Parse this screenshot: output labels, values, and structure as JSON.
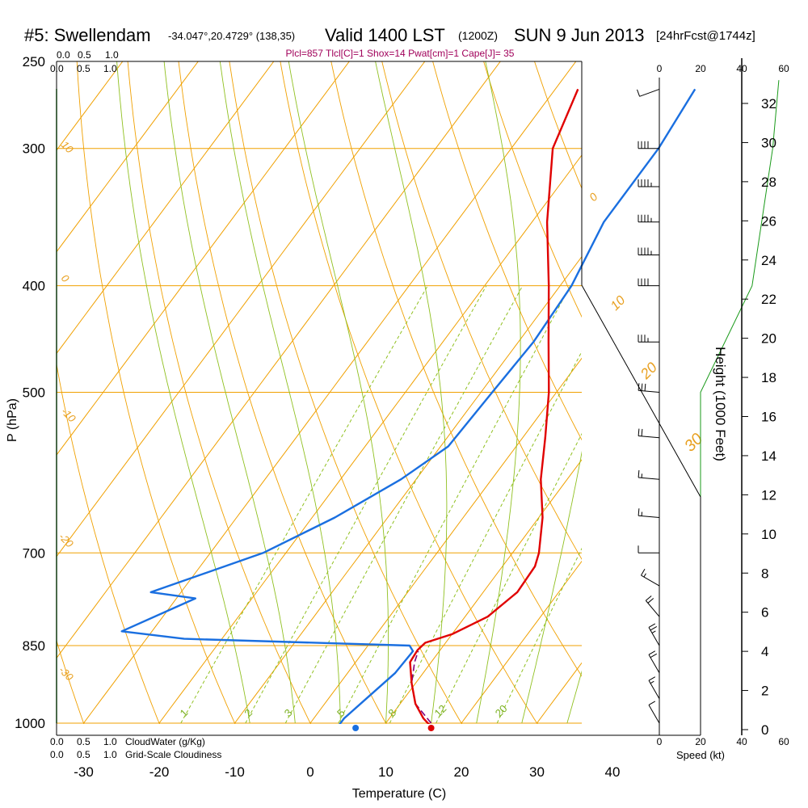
{
  "header": {
    "station": "#5: Swellendam",
    "coords": "-34.047°,20.4729° (138,35)",
    "valid": "Valid 1400 LST",
    "zulu": "(1200Z)",
    "date": "SUN 9 Jun 2013",
    "forecast": "[24hrFcst@1744z]"
  },
  "params_line": "Plcl=857 Tlcl[C]=1 Shox=14 Pwat[cm]=1 Cape[J]= 35",
  "cloud_scale": {
    "top_green": [
      "0.0",
      "0.5",
      "1.0"
    ],
    "top_black": [
      "0.0",
      "0.5",
      "1.0"
    ],
    "bottom_green": [
      "0.0",
      "0.5",
      "1.0"
    ],
    "bottom_black": [
      "0.0",
      "0.5",
      "1.0"
    ],
    "cloudwater_label": "CloudWater (g/Kg)",
    "cloudiness_label": "Grid-Scale Cloudiness"
  },
  "wind_speed_scale": {
    "ticks": [
      "0",
      "20",
      "40",
      "60"
    ],
    "label": "Speed (kt)"
  },
  "colors": {
    "temperature": "#e00000",
    "dewpoint": "#1a6fe0",
    "parcel": "#800080",
    "isotherm": "#f0a000",
    "dry_adiabat": "#f0a000",
    "moist_adiabat": "#90c020",
    "mixing_ratio": "#90c020",
    "height_curve": "#1a9a1a"
  },
  "chart_data": {
    "type": "skew-t",
    "xlabel": "Temperature (C)",
    "ylabel": "P (hPa)",
    "y2label": "Height (1000 Feet)",
    "x_ticks": [
      -30,
      -20,
      -10,
      0,
      10,
      20,
      30,
      40
    ],
    "p_ticks": [
      250,
      300,
      400,
      500,
      700,
      850,
      1000
    ],
    "height_ticks": [
      0,
      2,
      4,
      6,
      8,
      10,
      12,
      14,
      16,
      18,
      20,
      22,
      24,
      26,
      28,
      30,
      32
    ],
    "isotherm_labels": [
      "0",
      "10",
      "20",
      "30"
    ],
    "dry_adiabat_labels": [
      "10",
      "0",
      "-10",
      "-20",
      "-30"
    ],
    "mixing_ratio_labels": [
      "1",
      "2",
      "3",
      "5",
      "8",
      "12",
      "20"
    ],
    "temperature": [
      {
        "p": 1004,
        "t": 16.0
      },
      {
        "p": 990,
        "t": 14.5
      },
      {
        "p": 960,
        "t": 12.0
      },
      {
        "p": 920,
        "t": 9.5
      },
      {
        "p": 880,
        "t": 7.2
      },
      {
        "p": 858,
        "t": 7.0
      },
      {
        "p": 845,
        "t": 7.3
      },
      {
        "p": 830,
        "t": 10.0
      },
      {
        "p": 800,
        "t": 13.0
      },
      {
        "p": 760,
        "t": 14.5
      },
      {
        "p": 720,
        "t": 14.3
      },
      {
        "p": 700,
        "t": 13.5
      },
      {
        "p": 650,
        "t": 10.5
      },
      {
        "p": 600,
        "t": 6.5
      },
      {
        "p": 550,
        "t": 3.0
      },
      {
        "p": 500,
        "t": -1.0
      },
      {
        "p": 450,
        "t": -6.0
      },
      {
        "p": 400,
        "t": -11.5
      },
      {
        "p": 350,
        "t": -18.0
      },
      {
        "p": 300,
        "t": -24.5
      },
      {
        "p": 265,
        "t": -27.0
      }
    ],
    "dewpoint": [
      {
        "p": 1004,
        "t": 4.0
      },
      {
        "p": 990,
        "t": 4.0
      },
      {
        "p": 950,
        "t": 5.0
      },
      {
        "p": 900,
        "t": 6.3
      },
      {
        "p": 860,
        "t": 6.5
      },
      {
        "p": 850,
        "t": 5.5
      },
      {
        "p": 838,
        "t": -25.0
      },
      {
        "p": 825,
        "t": -34.0
      },
      {
        "p": 770,
        "t": -27.5
      },
      {
        "p": 760,
        "t": -34.0
      },
      {
        "p": 700,
        "t": -23.0
      },
      {
        "p": 650,
        "t": -17.0
      },
      {
        "p": 600,
        "t": -12.0
      },
      {
        "p": 560,
        "t": -9.0
      },
      {
        "p": 500,
        "t": -8.5
      },
      {
        "p": 450,
        "t": -8.0
      },
      {
        "p": 400,
        "t": -8.5
      },
      {
        "p": 350,
        "t": -10.5
      },
      {
        "p": 300,
        "t": -10.5
      },
      {
        "p": 265,
        "t": -11.5
      }
    ],
    "parcel": [
      {
        "p": 1000,
        "t": 16.0
      },
      {
        "p": 960,
        "t": 12.0
      },
      {
        "p": 920,
        "t": 9.5
      },
      {
        "p": 880,
        "t": 7.8
      },
      {
        "p": 860,
        "t": 7.2
      }
    ],
    "surface_temperature": 16.0,
    "surface_dewpoint": 6.0,
    "winds": [
      {
        "p": 265,
        "spd": 10,
        "dir": 250
      },
      {
        "p": 300,
        "spd": 40,
        "dir": 270
      },
      {
        "p": 325,
        "spd": 45,
        "dir": 270
      },
      {
        "p": 350,
        "spd": 45,
        "dir": 270
      },
      {
        "p": 375,
        "spd": 45,
        "dir": 270
      },
      {
        "p": 400,
        "spd": 40,
        "dir": 270
      },
      {
        "p": 450,
        "spd": 35,
        "dir": 270
      },
      {
        "p": 500,
        "spd": 30,
        "dir": 275
      },
      {
        "p": 550,
        "spd": 20,
        "dir": 275
      },
      {
        "p": 600,
        "spd": 15,
        "dir": 275
      },
      {
        "p": 650,
        "spd": 15,
        "dir": 275
      },
      {
        "p": 700,
        "spd": 10,
        "dir": 270
      },
      {
        "p": 750,
        "spd": 15,
        "dir": 300
      },
      {
        "p": 800,
        "spd": 20,
        "dir": 320
      },
      {
        "p": 850,
        "spd": 25,
        "dir": 330
      },
      {
        "p": 900,
        "spd": 20,
        "dir": 330
      },
      {
        "p": 950,
        "spd": 15,
        "dir": 330
      },
      {
        "p": 1000,
        "spd": 10,
        "dir": 330
      }
    ],
    "wind_speed_profile": [
      {
        "p": 1000,
        "spd": 20
      },
      {
        "p": 850,
        "spd": 20
      },
      {
        "p": 780,
        "spd": 20
      },
      {
        "p": 700,
        "spd": 20
      },
      {
        "p": 600,
        "spd": 20
      },
      {
        "p": 500,
        "spd": 20
      },
      {
        "p": 400,
        "spd": 45
      },
      {
        "p": 300,
        "spd": 55
      },
      {
        "p": 260,
        "spd": 58
      }
    ],
    "ylim": [
      1000,
      250
    ],
    "xlim": [
      -35,
      47
    ]
  }
}
